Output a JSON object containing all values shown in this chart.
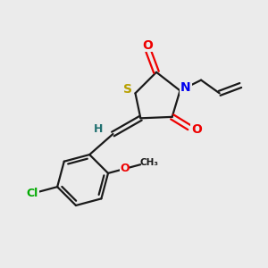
{
  "background_color": "#ebebeb",
  "bond_color": "#1a1a1a",
  "atom_colors": {
    "S": "#b8a000",
    "N": "#0000ee",
    "O": "#ee0000",
    "Cl": "#00aa00",
    "H": "#207070",
    "C": "#1a1a1a"
  },
  "figsize": [
    3.0,
    3.0
  ],
  "dpi": 100
}
